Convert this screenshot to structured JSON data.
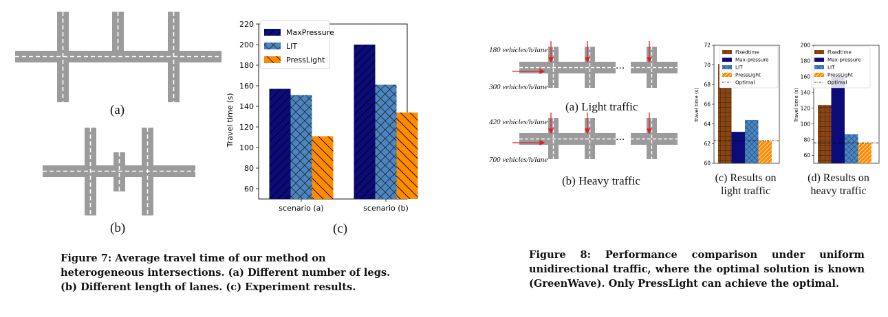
{
  "figure7": {
    "label_a": "(a)",
    "label_b": "(b)",
    "label_c": "(c)",
    "caption": "Figure 7: Average travel time of our method on heterogeneous intersections. (a) Different number of legs. (b) Different length of lanes. (c) Experiment results."
  },
  "figure8": {
    "label_light": "(a) Light traffic",
    "label_heavy": "(b) Heavy traffic",
    "light_ns": "180 vehicles/h/lane",
    "light_ew": "300 vehicles/h/lane",
    "heavy_ns": "420 vehicles/h/lane",
    "heavy_ew": "700 vehicles/h/lane",
    "ellipsis": "···",
    "label_c_line1": "(c) Results on",
    "label_c_line2": "light traffic",
    "label_d_line1": "(d) Results on",
    "label_d_line2": "heavy traffic",
    "caption": "Figure 8: Performance comparison under uniform unidirectional traffic, where the optimal solution is known (GreenWave). Only PressLight can achieve the optimal."
  },
  "colors": {
    "road": "#9b9b9b",
    "maxpressure": "#0b0b7a",
    "lit": "#4a86c2",
    "presslight": "#ff8c00",
    "fixedtime": "#8b4513",
    "arrow": "#e02020"
  },
  "chart_data": [
    {
      "id": "fig7c",
      "type": "bar",
      "categories": [
        "scenario (a)",
        "scenario (b)"
      ],
      "series": [
        {
          "name": "MaxPressure",
          "values": [
            157,
            200
          ]
        },
        {
          "name": "LIT",
          "values": [
            151,
            161
          ]
        },
        {
          "name": "PressLight",
          "values": [
            111,
            134
          ]
        }
      ],
      "ylabel": "Travel time (s)",
      "ylim": [
        50,
        220
      ],
      "yticks": [
        60,
        80,
        100,
        120,
        140,
        160,
        180,
        200,
        220
      ],
      "legend": "top-left",
      "grid": false
    },
    {
      "id": "fig8c",
      "type": "bar",
      "series": [
        {
          "name": "Fixedtime",
          "values": [
            70.1
          ]
        },
        {
          "name": "Max-pressure",
          "values": [
            63.2
          ]
        },
        {
          "name": "LIT",
          "values": [
            64.4
          ]
        },
        {
          "name": "PressLight",
          "values": [
            62.3
          ]
        }
      ],
      "reference_line": {
        "name": "Optimal",
        "value": 62.3
      },
      "ylabel": "Travel time (s)",
      "ylim": [
        60,
        72
      ],
      "yticks": [
        60,
        62,
        64,
        66,
        68,
        70,
        72
      ],
      "legend": "top-right",
      "grid": false
    },
    {
      "id": "fig8d",
      "type": "bar",
      "series": [
        {
          "name": "Fixedtime",
          "values": [
            124
          ]
        },
        {
          "name": "Max-pressure",
          "values": [
            160
          ]
        },
        {
          "name": "LIT",
          "values": [
            87
          ]
        },
        {
          "name": "PressLight",
          "values": [
            76
          ]
        }
      ],
      "reference_line": {
        "name": "Optimal",
        "value": 76
      },
      "ylabel": "Travel time (s)",
      "ylim": [
        50,
        200
      ],
      "yticks": [
        60,
        80,
        100,
        120,
        140,
        160,
        180,
        200
      ],
      "legend": "top-right",
      "grid": false
    }
  ]
}
